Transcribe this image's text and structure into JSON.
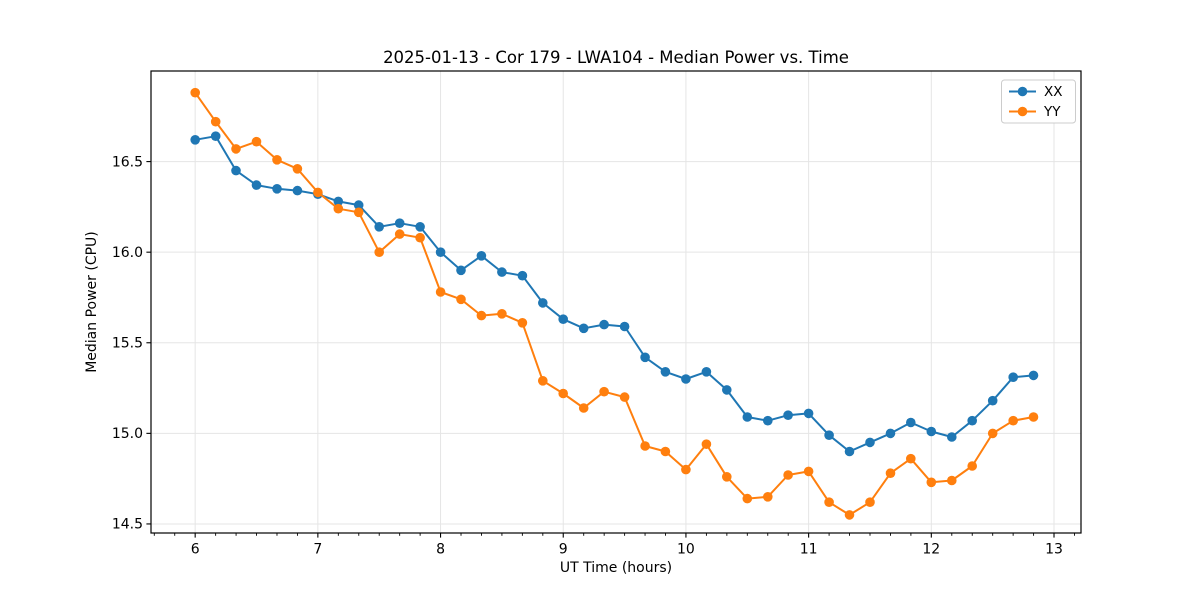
{
  "figure": {
    "background": "#ffffff"
  },
  "chart_data": {
    "type": "line",
    "title": "2025-01-13 - Cor 179 - LWA104 - Median Power vs. Time",
    "xlabel": "UT Time (hours)",
    "ylabel": "Median Power (CPU)",
    "xlim": [
      5.64,
      13.22
    ],
    "ylim": [
      14.45,
      17.0
    ],
    "xticks": [
      6,
      7,
      8,
      9,
      10,
      11,
      12,
      13
    ],
    "yticks": [
      14.5,
      15.0,
      15.5,
      16.0,
      16.5
    ],
    "x_minor_step": 0.16667,
    "grid": true,
    "legend_position": "upper right",
    "x": [
      6.0,
      6.167,
      6.333,
      6.5,
      6.667,
      6.833,
      7.0,
      7.167,
      7.333,
      7.5,
      7.667,
      7.833,
      8.0,
      8.167,
      8.333,
      8.5,
      8.667,
      8.833,
      9.0,
      9.167,
      9.333,
      9.5,
      9.667,
      9.833,
      10.0,
      10.167,
      10.333,
      10.5,
      10.667,
      10.833,
      11.0,
      11.167,
      11.333,
      11.5,
      11.667,
      11.833,
      12.0,
      12.167,
      12.333,
      12.5,
      12.667,
      12.833
    ],
    "series": [
      {
        "name": "XX",
        "color": "#1f77b4",
        "values": [
          16.62,
          16.64,
          16.45,
          16.37,
          16.35,
          16.34,
          16.32,
          16.28,
          16.26,
          16.14,
          16.16,
          16.14,
          16.0,
          15.9,
          15.98,
          15.89,
          15.87,
          15.72,
          15.63,
          15.58,
          15.6,
          15.59,
          15.42,
          15.34,
          15.3,
          15.34,
          15.24,
          15.09,
          15.07,
          15.1,
          15.11,
          14.99,
          14.9,
          14.95,
          15.0,
          15.06,
          15.01,
          14.98,
          15.07,
          15.18,
          15.31,
          15.32
        ]
      },
      {
        "name": "YY",
        "color": "#ff7f0e",
        "values": [
          16.88,
          16.72,
          16.57,
          16.61,
          16.51,
          16.46,
          16.33,
          16.24,
          16.22,
          16.0,
          16.1,
          16.08,
          15.78,
          15.74,
          15.65,
          15.66,
          15.61,
          15.29,
          15.22,
          15.14,
          15.23,
          15.2,
          14.93,
          14.9,
          14.8,
          14.94,
          14.76,
          14.64,
          14.65,
          14.77,
          14.79,
          14.62,
          14.55,
          14.62,
          14.78,
          14.86,
          14.73,
          14.74,
          14.82,
          15.0,
          15.07,
          15.09
        ]
      }
    ]
  }
}
